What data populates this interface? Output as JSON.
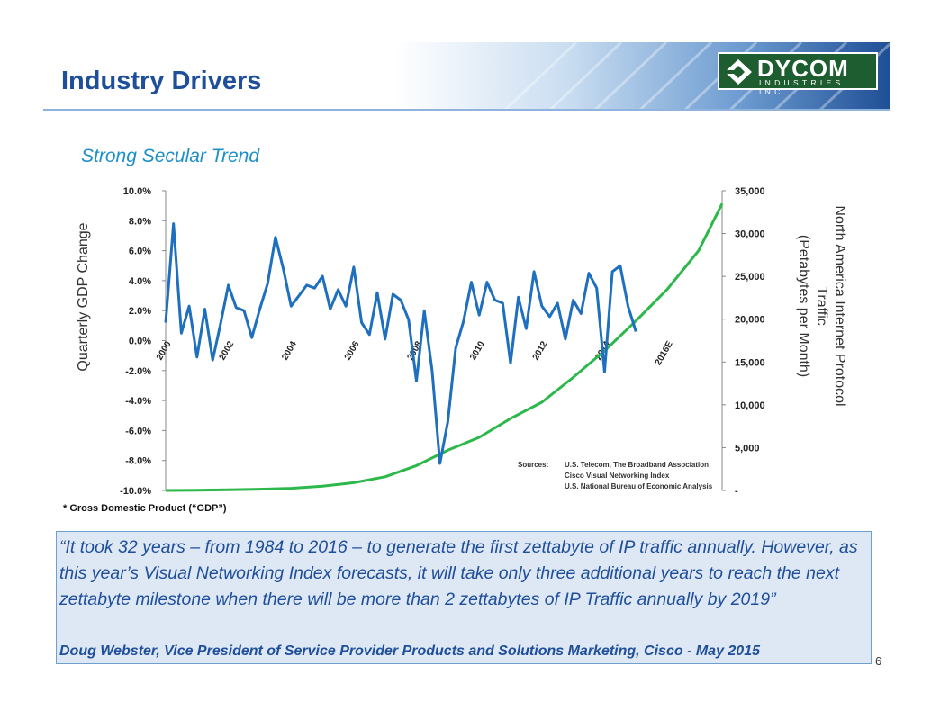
{
  "slide": {
    "title": "Industry Drivers",
    "subtitle": "Strong Secular Trend",
    "footnote": "* Gross Domestic Product (“GDP”)",
    "quote": "“It took 32 years – from 1984 to 2016 – to generate the first zettabyte of IP traffic annually. However, as this year’s Visual Networking Index forecasts, it will take only three additional years to reach the next zettabyte milestone when there will be more than 2 zettabytes of IP Traffic annually by 2019”",
    "quote_attribution": "Doug Webster, Vice President of Service Provider Products and Solutions Marketing, Cisco - May 2015",
    "page_number": "6"
  },
  "logo": {
    "name": "DYCOM",
    "subtext": "INDUSTRIES INC."
  },
  "colors": {
    "title": "#1f4e9a",
    "subtitle": "#1e90c8",
    "gdp_series": "#1f6fbf",
    "traffic_series": "#2db84b",
    "logo_green": "#1d5d2f",
    "quote_bg": "#dde8f4"
  },
  "chart_data": {
    "type": "line",
    "y_left": {
      "label": "Quarterly GDP Change",
      "range": [
        -10,
        10
      ],
      "ticks": [
        "10.0%",
        "8.0%",
        "6.0%",
        "4.0%",
        "2.0%",
        "0.0%",
        "-2.0%",
        "-4.0%",
        "-6.0%",
        "-8.0%",
        "-10.0%"
      ]
    },
    "y_right": {
      "label_lines": [
        "North America Internet Protocol",
        "Traffic",
        "(Petabytes per Month)"
      ],
      "range": [
        0,
        35000
      ],
      "ticks": [
        "35,000",
        "30,000",
        "25,000",
        "20,000",
        "15,000",
        "10,000",
        "5,000",
        "-"
      ]
    },
    "x_labels": [
      "2000",
      "2002",
      "2004",
      "2006",
      "2008",
      "2010",
      "2012",
      "2014",
      "2016E"
    ],
    "x_range": [
      2000,
      2017.75
    ],
    "sources": {
      "label": "Sources:",
      "lines": [
        "U.S. Telecom, The Broadband Association",
        "Cisco Visual Networking Index",
        "U.S. National Bureau of Economic Analysis"
      ]
    },
    "series": [
      {
        "axis": "left",
        "x": [
          2000.0,
          2000.25,
          2000.5,
          2000.75,
          2001.0,
          2001.25,
          2001.5,
          2001.75,
          2002.0,
          2002.25,
          2002.5,
          2002.75,
          2003.0,
          2003.25,
          2003.5,
          2003.75,
          2004.0,
          2004.25,
          2004.5,
          2004.75,
          2005.0,
          2005.25,
          2005.5,
          2005.75,
          2006.0,
          2006.25,
          2006.5,
          2006.75,
          2007.0,
          2007.25,
          2007.5,
          2007.75,
          2008.0,
          2008.25,
          2008.5,
          2008.75,
          2009.0,
          2009.25,
          2009.5,
          2009.75,
          2010.0,
          2010.25,
          2010.5,
          2010.75,
          2011.0,
          2011.25,
          2011.5,
          2011.75,
          2012.0,
          2012.25,
          2012.5,
          2012.75,
          2013.0,
          2013.25,
          2013.5,
          2013.75,
          2014.0,
          2014.25,
          2014.5,
          2014.75,
          2015.0
        ],
        "values": [
          1.2,
          7.8,
          0.5,
          2.3,
          -1.1,
          2.1,
          -1.3,
          1.1,
          3.7,
          2.2,
          2.0,
          0.2,
          2.1,
          3.8,
          6.9,
          4.8,
          2.3,
          3.0,
          3.7,
          3.5,
          4.3,
          2.1,
          3.4,
          2.3,
          4.9,
          1.2,
          0.4,
          3.2,
          0.1,
          3.1,
          2.7,
          1.4,
          -2.7,
          2.0,
          -2.0,
          -8.2,
          -5.4,
          -0.5,
          1.3,
          3.9,
          1.7,
          3.9,
          2.7,
          2.5,
          -1.5,
          2.9,
          0.8,
          4.6,
          2.3,
          1.6,
          2.5,
          0.1,
          2.7,
          1.8,
          4.5,
          3.5,
          -2.1,
          4.6,
          5.0,
          2.3,
          0.6
        ]
      },
      {
        "axis": "right",
        "x": [
          2000,
          2001,
          2002,
          2003,
          2004,
          2005,
          2006,
          2007,
          2008,
          2009,
          2010,
          2011,
          2012,
          2013,
          2014,
          2015,
          2016,
          2017,
          2017.75
        ],
        "values": [
          0,
          30,
          80,
          150,
          250,
          500,
          900,
          1600,
          2900,
          4700,
          6200,
          8400,
          10300,
          13200,
          16300,
          19800,
          23500,
          28000,
          33500
        ]
      }
    ]
  }
}
